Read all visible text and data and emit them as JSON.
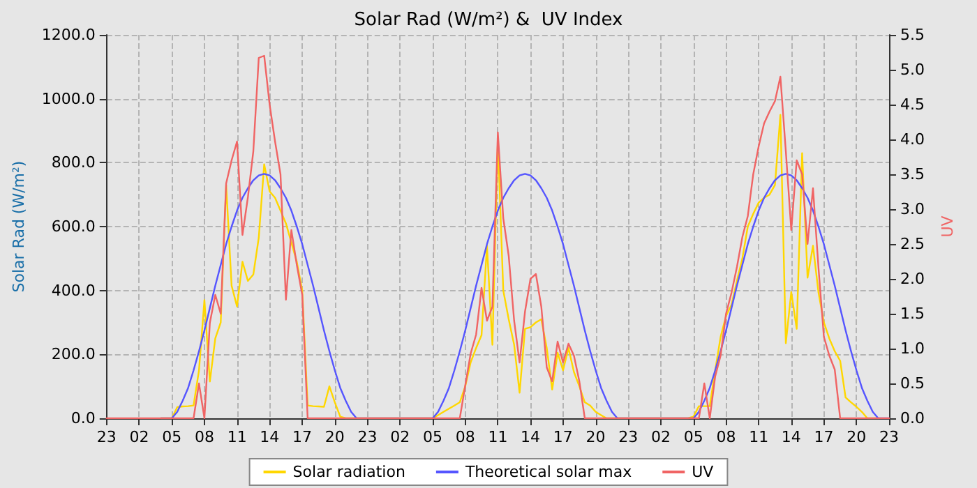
{
  "chart_data": {
    "type": "line",
    "title": "Solar Rad (W/m²) &  UV Index",
    "ylabel": "Solar Rad (W/m²)",
    "y2label": "UV",
    "categories": [
      "23",
      null,
      null,
      null,
      null,
      null,
      "02",
      null,
      null,
      null,
      null,
      null,
      "05",
      null,
      null,
      null,
      null,
      null,
      "08",
      null,
      null,
      null,
      null,
      null,
      "11",
      null,
      null,
      null,
      null,
      null,
      "14",
      null,
      null,
      null,
      null,
      null,
      "17",
      null,
      null,
      null,
      null,
      null,
      "20",
      null,
      null,
      null,
      null,
      null,
      "23",
      null,
      null,
      null,
      null,
      null,
      "02",
      null,
      null,
      null,
      null,
      null,
      "05",
      null,
      null,
      null,
      null,
      null,
      "08",
      null,
      null,
      null,
      null,
      null,
      "11",
      null,
      null,
      null,
      null,
      null,
      "14",
      null,
      null,
      null,
      null,
      null,
      "17",
      null,
      null,
      null,
      null,
      null,
      "20",
      null,
      null,
      null,
      null,
      null,
      "23",
      null,
      null,
      null,
      null,
      null,
      "02",
      null,
      null,
      null,
      null,
      null,
      "05",
      null,
      null,
      null,
      null,
      null,
      "08",
      null,
      null,
      null,
      null,
      null,
      "11",
      null,
      null,
      null,
      null,
      null,
      "14",
      null,
      null,
      null,
      null,
      null,
      "17",
      null,
      null,
      null,
      null,
      null,
      "20",
      null,
      null,
      null,
      null,
      null,
      "23"
    ],
    "ylim": [
      0,
      1200
    ],
    "yticks": [
      {
        "value": 0,
        "label": "0.0"
      },
      {
        "value": 200,
        "label": "200.0"
      },
      {
        "value": 400,
        "label": "400.0"
      },
      {
        "value": 600,
        "label": "600.0"
      },
      {
        "value": 800,
        "label": "800.0"
      },
      {
        "value": 1000,
        "label": "1000.0"
      },
      {
        "value": 1200,
        "label": "1200.0"
      }
    ],
    "y2lim": [
      0,
      5.5
    ],
    "y2ticks": [
      {
        "value": 0,
        "label": "0.0"
      },
      {
        "value": 0.5,
        "label": "0.5"
      },
      {
        "value": 1,
        "label": "1.0"
      },
      {
        "value": 1.5,
        "label": "1.5"
      },
      {
        "value": 2,
        "label": "2.0"
      },
      {
        "value": 2.5,
        "label": "2.5"
      },
      {
        "value": 3,
        "label": "3.0"
      },
      {
        "value": 3.5,
        "label": "3.5"
      },
      {
        "value": 4,
        "label": "4.0"
      },
      {
        "value": 4.5,
        "label": "4.5"
      },
      {
        "value": 5,
        "label": "5.0"
      },
      {
        "value": 5.5,
        "label": "5.5"
      }
    ],
    "grid": true,
    "legend": "bottom",
    "marker": "none",
    "line_style": "solid",
    "series": [
      {
        "name": "Solar radiation",
        "color": "#ffd700",
        "values": [
          null,
          null,
          null,
          null,
          null,
          null,
          null,
          null,
          null,
          null,
          0,
          0,
          0,
          35,
          37,
          38,
          40,
          150,
          370,
          115,
          250,
          300,
          730,
          415,
          350,
          490,
          430,
          450,
          565,
          795,
          710,
          690,
          650,
          610,
          550,
          490,
          400,
          40,
          38,
          37,
          36,
          100,
          50,
          5,
          0,
          0,
          0,
          0,
          0,
          0,
          0,
          0,
          0,
          0,
          0,
          0,
          0,
          0,
          0,
          0,
          0,
          10,
          20,
          30,
          40,
          50,
          100,
          175,
          220,
          260,
          540,
          230,
          870,
          400,
          310,
          230,
          80,
          280,
          285,
          300,
          310,
          220,
          90,
          205,
          150,
          220,
          145,
          100,
          50,
          40,
          20,
          10,
          0,
          0,
          0,
          0,
          0,
          0,
          0,
          0,
          0,
          0,
          0,
          0,
          0,
          0,
          0,
          0,
          5,
          38,
          38,
          38,
          150,
          255,
          320,
          355,
          430,
          500,
          600,
          640,
          675,
          690,
          700,
          730,
          950,
          235,
          395,
          280,
          830,
          440,
          540,
          395,
          300,
          250,
          210,
          180,
          65,
          50,
          36,
          20,
          0,
          0,
          0,
          null,
          null
        ]
      },
      {
        "name": "Theoretical solar max",
        "color": "#5555ff",
        "values": [
          null,
          null,
          null,
          null,
          null,
          null,
          null,
          null,
          null,
          null,
          0,
          0,
          0,
          20,
          55,
          95,
          150,
          210,
          275,
          345,
          415,
          480,
          545,
          600,
          650,
          690,
          720,
          745,
          760,
          765,
          760,
          745,
          720,
          690,
          650,
          600,
          545,
          480,
          415,
          345,
          275,
          210,
          150,
          95,
          55,
          20,
          0,
          0,
          0,
          0,
          0,
          0,
          0,
          0,
          0,
          0,
          0,
          0,
          0,
          0,
          0,
          20,
          55,
          95,
          150,
          210,
          275,
          345,
          415,
          480,
          545,
          600,
          650,
          690,
          720,
          745,
          760,
          765,
          760,
          745,
          720,
          690,
          650,
          600,
          545,
          480,
          415,
          345,
          275,
          210,
          150,
          95,
          55,
          20,
          0,
          0,
          0,
          0,
          0,
          0,
          0,
          0,
          0,
          0,
          0,
          0,
          0,
          0,
          0,
          20,
          55,
          95,
          150,
          210,
          275,
          345,
          415,
          480,
          545,
          600,
          650,
          690,
          720,
          745,
          760,
          765,
          760,
          745,
          720,
          690,
          650,
          600,
          545,
          480,
          415,
          345,
          275,
          210,
          150,
          95,
          55,
          20,
          0,
          0,
          0
        ]
      },
      {
        "name": "UV",
        "color": "#f06464",
        "axis": "y2",
        "values": [
          0,
          0,
          0,
          0,
          0,
          0,
          0,
          0,
          0,
          0,
          0,
          0,
          0,
          0,
          0,
          0,
          0,
          0.5,
          0,
          1.37,
          1.77,
          1.5,
          3.37,
          3.7,
          3.97,
          2.63,
          3.17,
          3.83,
          5.17,
          5.2,
          4.5,
          3.97,
          3.5,
          1.7,
          2.7,
          2.2,
          1.77,
          0,
          0,
          0,
          0,
          0,
          0,
          0,
          0,
          0,
          0,
          0,
          0,
          0,
          0,
          0,
          0,
          0,
          0,
          0,
          0,
          0,
          0,
          0,
          0,
          0,
          0,
          0,
          0,
          0,
          0.47,
          0.93,
          1.2,
          1.87,
          1.4,
          1.6,
          4.1,
          2.87,
          2.33,
          1.4,
          0.8,
          1.53,
          2,
          2.07,
          1.6,
          0.73,
          0.53,
          1.1,
          0.8,
          1.07,
          0.9,
          0.53,
          0,
          0,
          0,
          0,
          0,
          0,
          0,
          0,
          0,
          0,
          0,
          0,
          0,
          0,
          0,
          0,
          0,
          0,
          0,
          0,
          0,
          0,
          0.5,
          0,
          0.6,
          0.9,
          1.5,
          1.8,
          2.17,
          2.6,
          2.9,
          3.5,
          3.9,
          4.23,
          4.4,
          4.55,
          4.9,
          3.83,
          2.7,
          3.7,
          3.5,
          2.5,
          3.3,
          2.17,
          1.17,
          0.9,
          0.7,
          0,
          0,
          0,
          0,
          0,
          0,
          0,
          0,
          0,
          0
        ]
      }
    ]
  }
}
